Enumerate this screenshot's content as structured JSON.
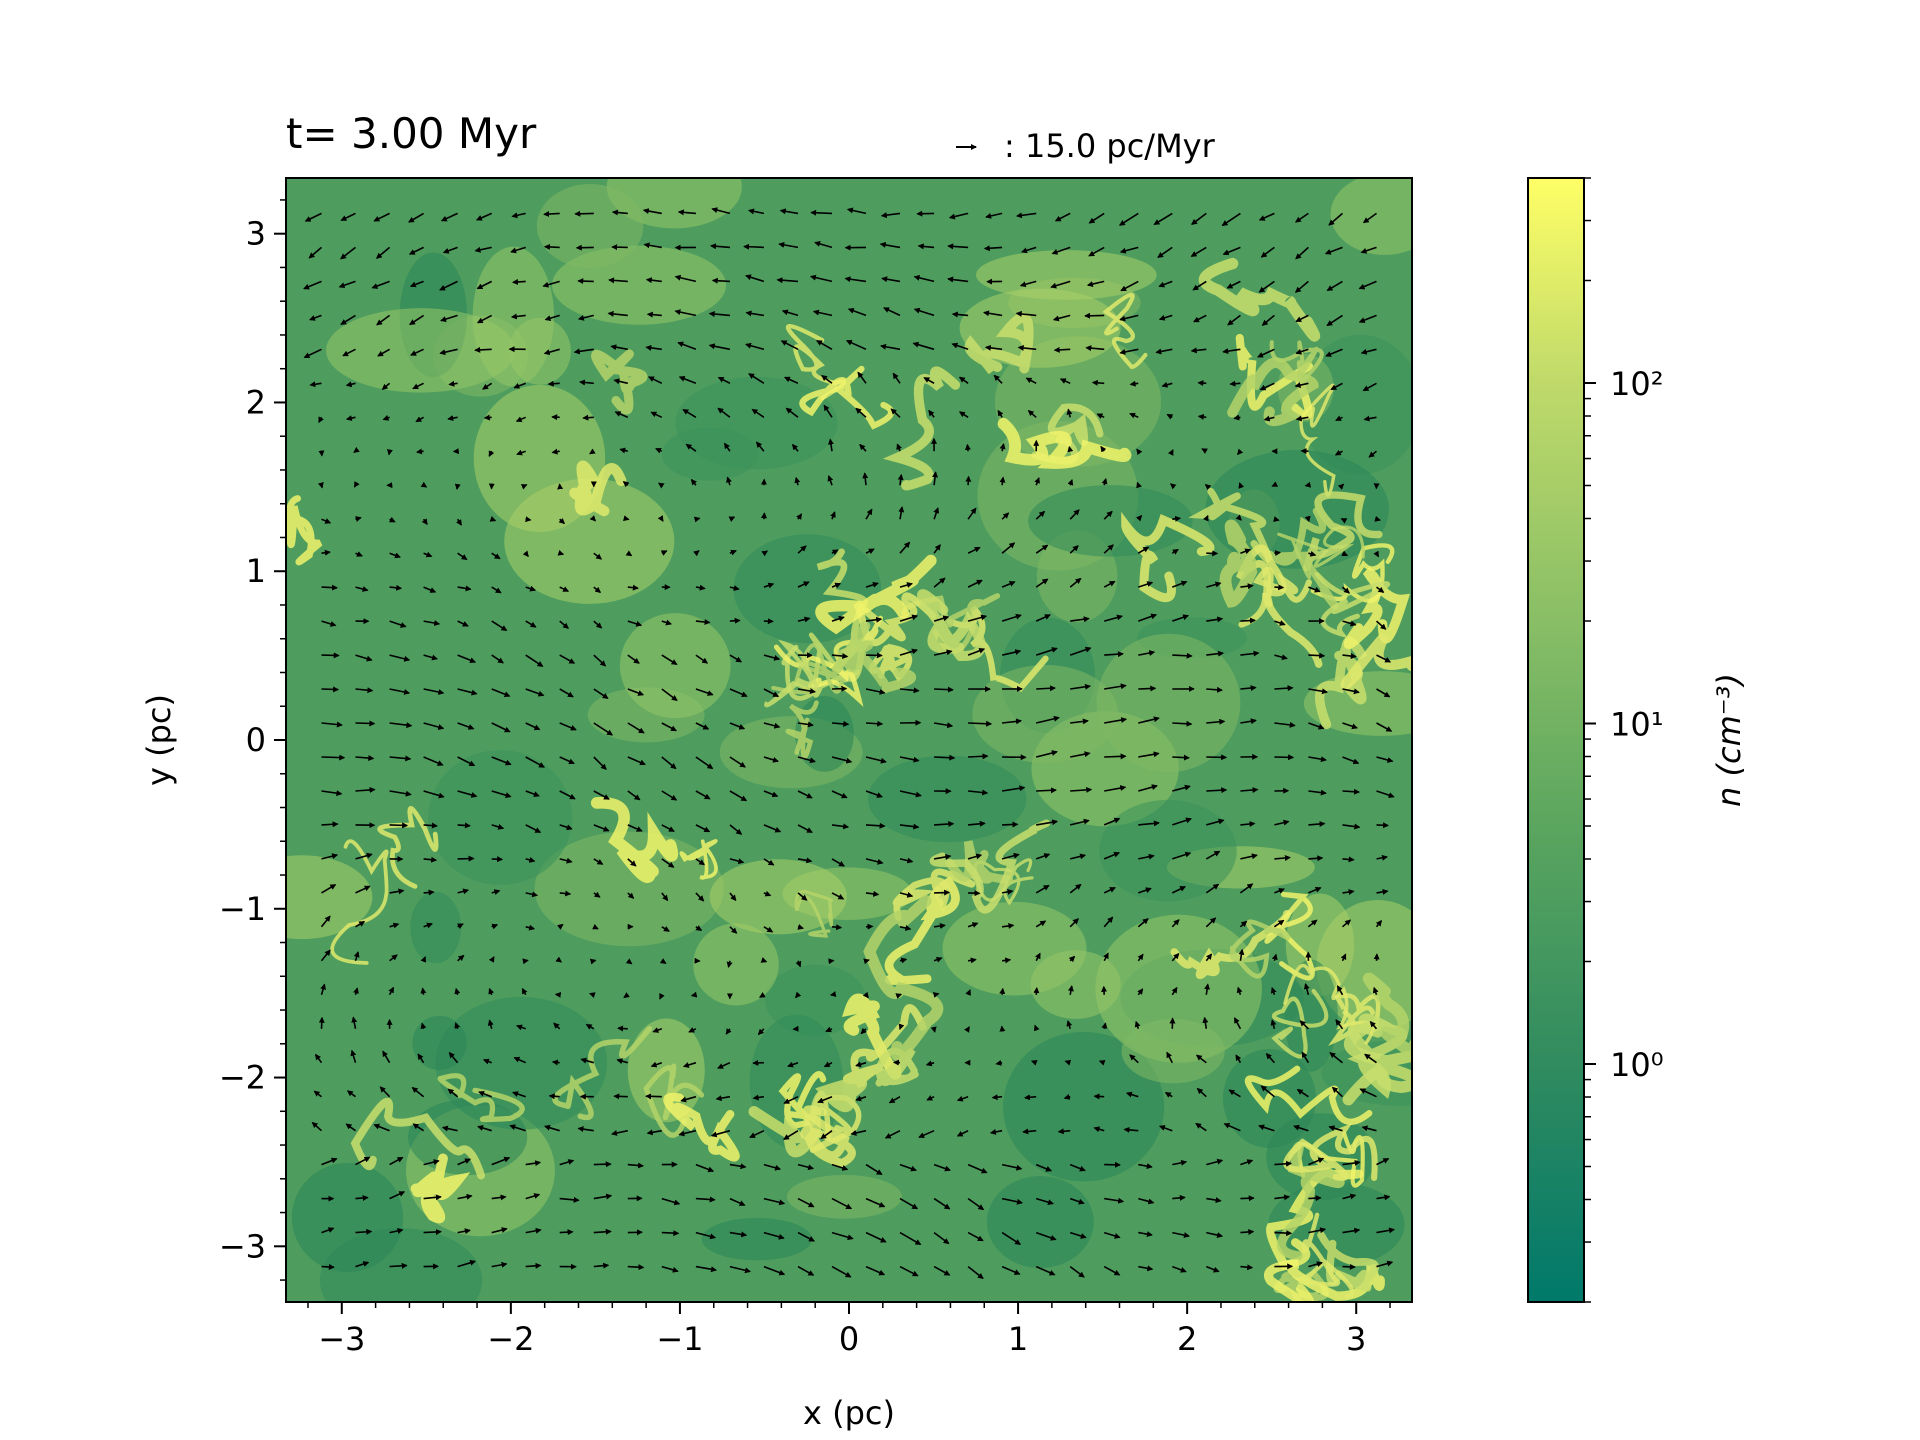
{
  "chart_data": {
    "type": "heatmap",
    "title": "t= 3.00 Myr",
    "xlabel": "x (pc)",
    "ylabel": "y (pc)",
    "xlim": [
      -3.33,
      3.33
    ],
    "ylim": [
      -3.33,
      3.33
    ],
    "xticks": [
      -3,
      -2,
      -1,
      0,
      1,
      2,
      3
    ],
    "yticks": [
      -3,
      -2,
      -1,
      0,
      1,
      2,
      3
    ],
    "xtick_labels": [
      "−3",
      "−2",
      "−1",
      "0",
      "1",
      "2",
      "3"
    ],
    "ytick_labels": [
      "−3",
      "−2",
      "−1",
      "0",
      "1",
      "2",
      "3"
    ],
    "quiver_key_label": ": 15.0 pc/Myr",
    "quiver_key_value": 15.0,
    "colorbar": {
      "label": "n (cm⁻³)",
      "scale": "log",
      "range": [
        0.2,
        400
      ],
      "ticks": [
        1,
        10,
        100
      ],
      "tick_labels": [
        "10⁰",
        "10¹",
        "10²"
      ],
      "colors": [
        "#00796b",
        "#2e8a5f",
        "#5aa55f",
        "#8cc066",
        "#c0da6a",
        "#ffff66"
      ]
    },
    "notes": "Gas number density map with velocity vector field overlaid on a 32x32 grid."
  }
}
